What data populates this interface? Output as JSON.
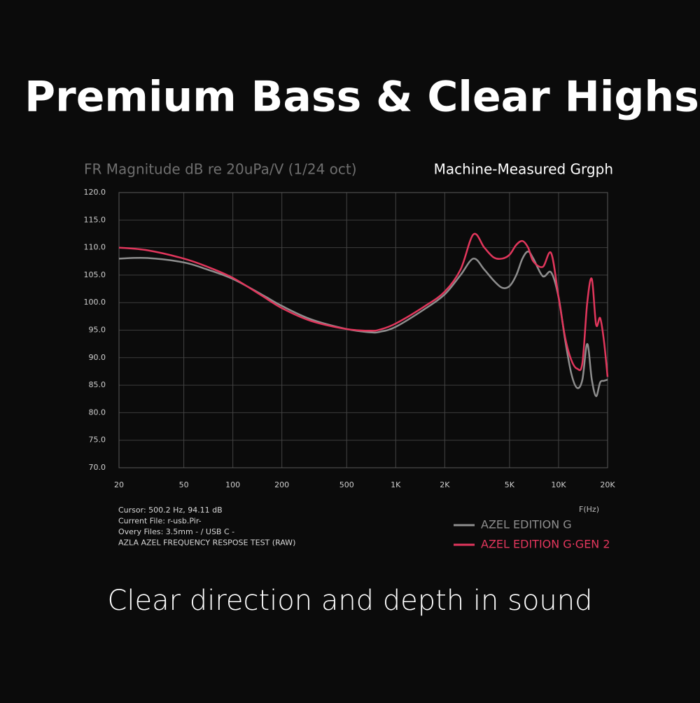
{
  "chart_data": {
    "type": "line",
    "title": "Premium Bass & Clear Highs",
    "y_label": "FR Magnitude dB re 20uPa/V (1/24 oct)",
    "subtitle": "Machine-Measured Grgph",
    "x_label": "F(Hz)",
    "info": [
      "Cursor: 500.2 Hz, 94.11 dB",
      "Current File: r-usb.Pir-",
      "Overy Files: 3.5mm - / USB C -",
      "AZLA AZEL FREQUENCY RESPOSE TEST (RAW)"
    ],
    "footer": "Clear direction and depth in sound",
    "x_scale": "log",
    "grid": true,
    "xlim": [
      20,
      20000
    ],
    "ylim": [
      70,
      120
    ],
    "xticks": [
      20,
      50,
      100,
      200,
      500,
      {
        "value": 1000,
        "label": "1K"
      },
      {
        "value": 2000,
        "label": "2K"
      },
      {
        "value": 5000,
        "label": "5K"
      },
      {
        "value": 10000,
        "label": "10K"
      },
      {
        "value": 20000,
        "label": "20K"
      }
    ],
    "yticks": [
      {
        "value": 70,
        "label": "70.0"
      },
      {
        "value": 75,
        "label": "75.0"
      },
      {
        "value": 80,
        "label": "80.0"
      },
      {
        "value": 85,
        "label": "85.0"
      },
      {
        "value": 90,
        "label": "90.0"
      },
      {
        "value": 95,
        "label": "95.0"
      },
      {
        "value": 100,
        "label": "100.0"
      },
      {
        "value": 105,
        "label": "105.0"
      },
      {
        "value": 110,
        "label": "110.0"
      },
      {
        "value": 115,
        "label": "115.0"
      },
      {
        "value": 120,
        "label": "120.0"
      }
    ],
    "x": [
      20,
      30,
      50,
      70,
      100,
      150,
      200,
      300,
      500,
      700,
      800,
      1000,
      1500,
      2000,
      2500,
      3000,
      3500,
      4000,
      4500,
      5000,
      5500,
      6000,
      6500,
      7000,
      8000,
      9000,
      10000,
      11000,
      12000,
      13000,
      14000,
      15000,
      16000,
      17000,
      18000,
      19000,
      20000
    ],
    "series": [
      {
        "name": "AZEL EDITION G",
        "color": "#8e8e8e",
        "values": [
          108,
          108.1,
          107.3,
          106,
          104.3,
          101.5,
          99.4,
          97,
          95.2,
          94.6,
          94.7,
          95.6,
          98.8,
          101.5,
          105,
          108,
          106,
          104,
          102.7,
          103,
          105,
          108,
          109.3,
          108,
          104.8,
          105.5,
          101,
          93,
          87,
          84.5,
          86,
          92.5,
          86,
          83,
          85.5,
          85.8,
          86
        ]
      },
      {
        "name": "AZEL EDITION G·GEN 2",
        "color": "#e2365c",
        "values": [
          110,
          109.5,
          108,
          106.5,
          104.5,
          101.3,
          99,
          96.7,
          95.2,
          94.9,
          95.1,
          96.2,
          99.3,
          102,
          106,
          112.4,
          110,
          108.2,
          108,
          108.7,
          110.5,
          111.2,
          110,
          107.5,
          106.5,
          109,
          101,
          93.5,
          89.5,
          88,
          89,
          100,
          104.3,
          96,
          97.2,
          93,
          86.5
        ]
      }
    ]
  }
}
